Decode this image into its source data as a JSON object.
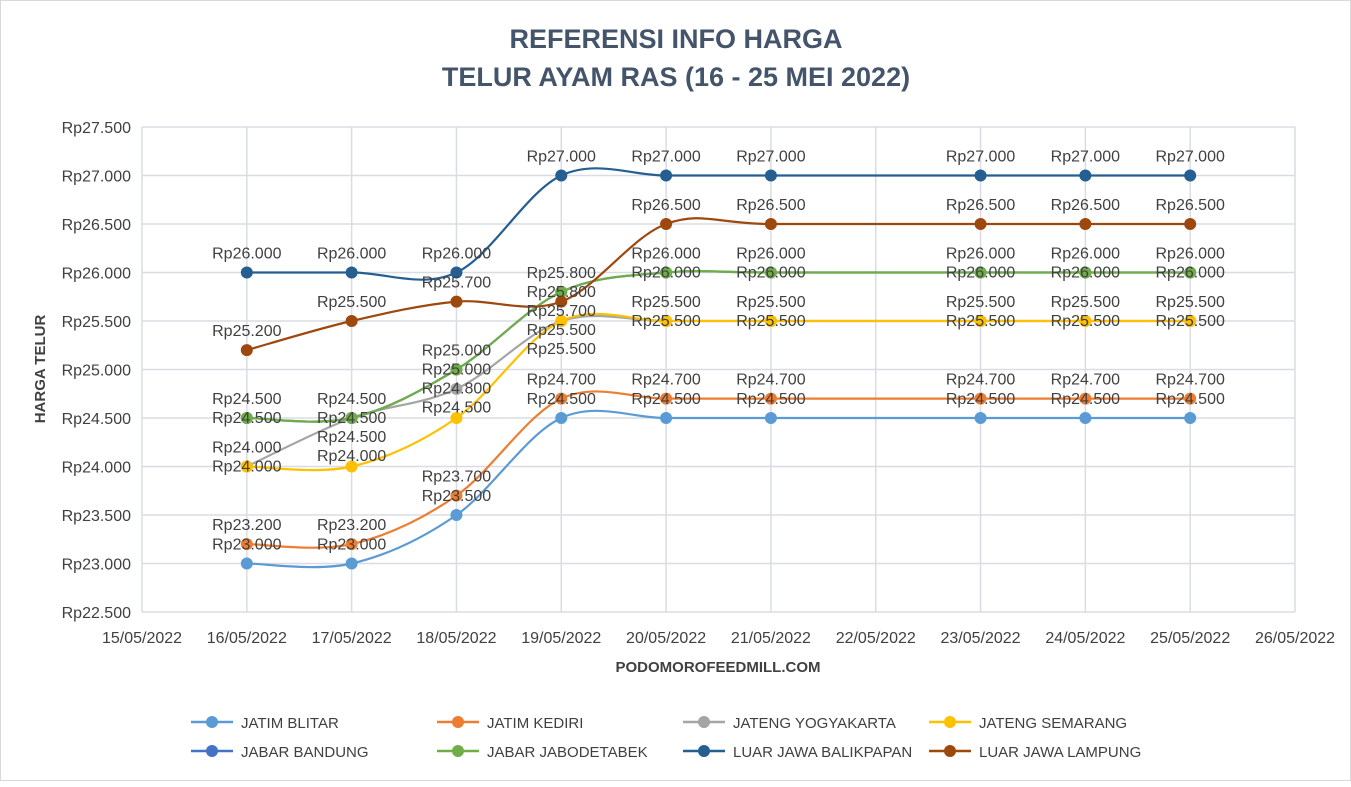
{
  "chart_data": {
    "type": "line",
    "title": [
      "REFERENSI INFO HARGA",
      "TELUR AYAM RAS (16 - 25 MEI 2022)"
    ],
    "xlabel": "PODOMOROFEEDMILL.COM",
    "ylabel": "HARGA TELUR",
    "x_ticks": [
      "15/05/2022",
      "16/05/2022",
      "17/05/2022",
      "18/05/2022",
      "19/05/2022",
      "20/05/2022",
      "21/05/2022",
      "22/05/2022",
      "23/05/2022",
      "24/05/2022",
      "25/05/2022",
      "26/05/2022"
    ],
    "x": [
      "16/05/2022",
      "17/05/2022",
      "18/05/2022",
      "19/05/2022",
      "20/05/2022",
      "21/05/2022",
      "23/05/2022",
      "24/05/2022",
      "25/05/2022"
    ],
    "ylim": [
      22500,
      27500
    ],
    "y_ticks": [
      "Rp22.500",
      "Rp23.000",
      "Rp23.500",
      "Rp24.000",
      "Rp24.500",
      "Rp25.000",
      "Rp25.500",
      "Rp26.000",
      "Rp26.500",
      "Rp27.000",
      "Rp27.500"
    ],
    "grid": true,
    "legend": "bottom",
    "series": [
      {
        "name": "JATIM BLITAR",
        "color": "#5b9bd5",
        "values": [
          23000,
          23000,
          23500,
          24500,
          24500,
          24500,
          24500,
          24500,
          24500
        ]
      },
      {
        "name": "JATIM KEDIRI",
        "color": "#ed7d31",
        "values": [
          23200,
          23200,
          23700,
          24700,
          24700,
          24700,
          24700,
          24700,
          24700
        ]
      },
      {
        "name": "JATENG YOGYAKARTA",
        "color": "#a5a5a5",
        "values": [
          24000,
          24500,
          24800,
          25500,
          25500,
          25500,
          25500,
          25500,
          25500
        ]
      },
      {
        "name": "JATENG SEMARANG",
        "color": "#ffc000",
        "values": [
          24000,
          24000,
          24500,
          25500,
          25500,
          25500,
          25500,
          25500,
          25500
        ]
      },
      {
        "name": "JABAR BANDUNG",
        "color": "#4472c4",
        "values": [
          24500,
          24500,
          25000,
          25800,
          26000,
          26000,
          26000,
          26000,
          26000
        ]
      },
      {
        "name": "JABAR JABODETABEK",
        "color": "#70ad47",
        "values": [
          24500,
          24500,
          25000,
          25800,
          26000,
          26000,
          26000,
          26000,
          26000
        ]
      },
      {
        "name": "LUAR JAWA BALIKPAPAN",
        "color": "#255e91",
        "values": [
          26000,
          26000,
          26000,
          27000,
          27000,
          27000,
          27000,
          27000,
          27000
        ]
      },
      {
        "name": "LUAR JAWA LAMPUNG",
        "color": "#9e480e",
        "values": [
          25200,
          25500,
          25700,
          25700,
          26500,
          26500,
          26500,
          26500,
          26500
        ]
      }
    ]
  }
}
